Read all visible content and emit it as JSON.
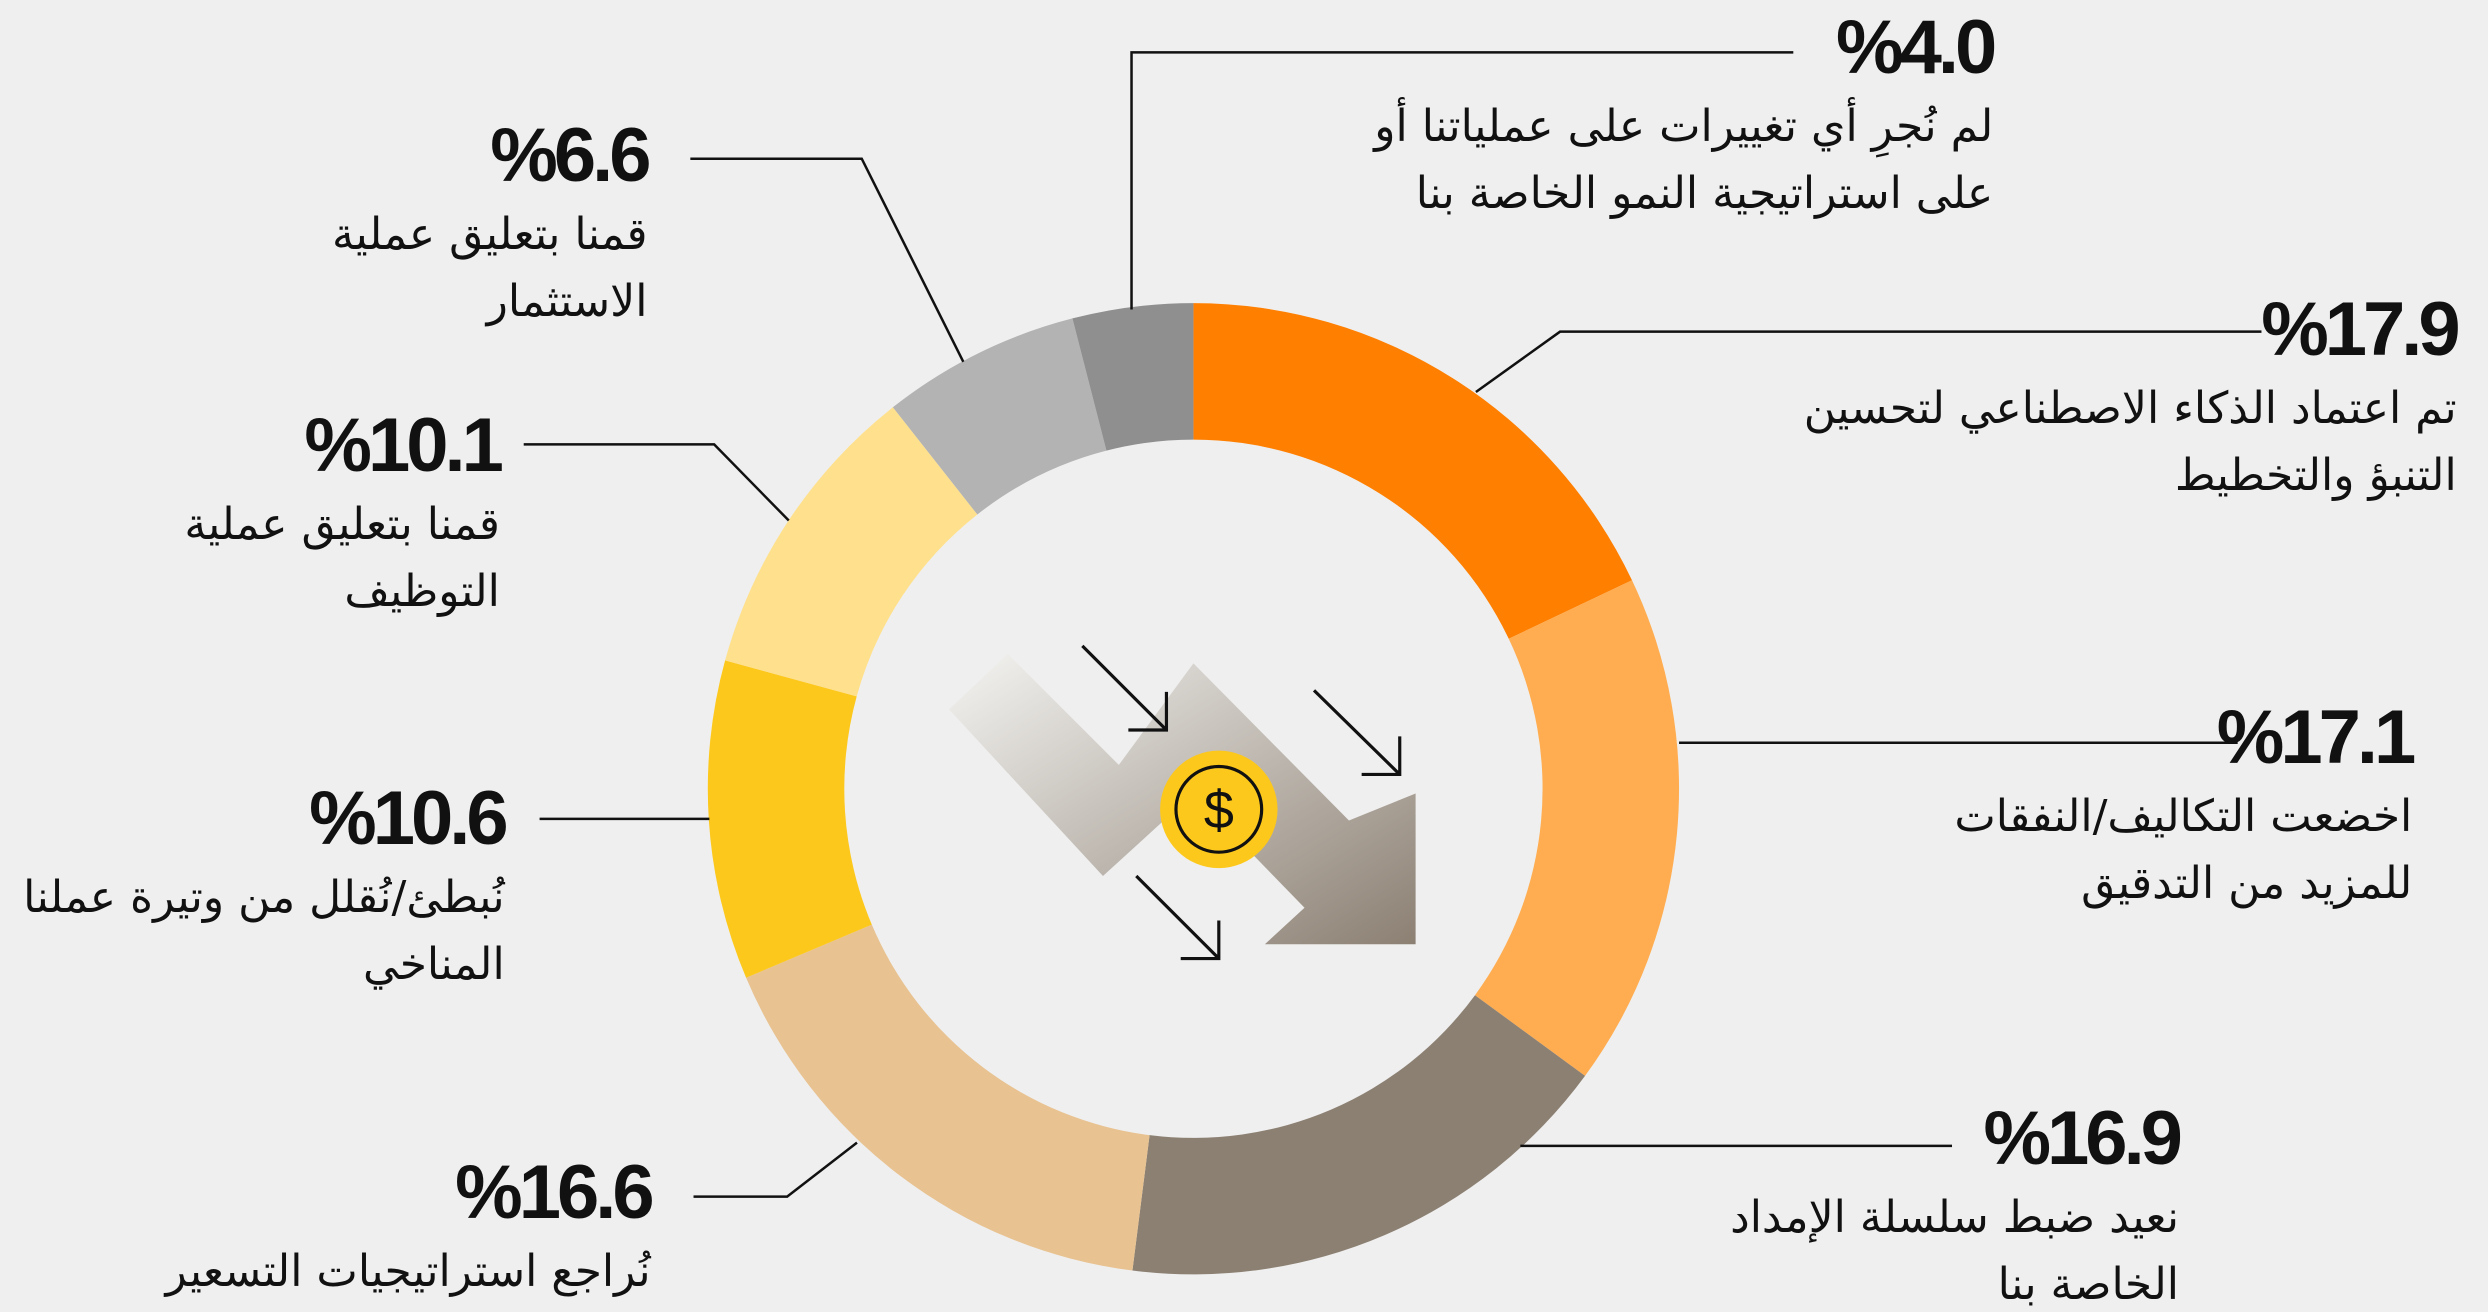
{
  "chart_data": {
    "type": "pie",
    "donut": true,
    "categories": [
      [
        "تم اعتماد الذكاء الاصطناعي لتحسين",
        "التنبؤ والتخطيط"
      ],
      [
        "اخضعت التكاليف/النفقات",
        "للمزيد من التدقيق"
      ],
      [
        "نعيد ضبط سلسلة الإمداد",
        "الخاصة بنا"
      ],
      [
        "نُراجع استراتيجيات التسعير"
      ],
      [
        "نُبطئ/نُقلل من وتيرة عملنا",
        "المناخي"
      ],
      [
        "قمنا بتعليق عملية",
        "التوظيف"
      ],
      [
        "قمنا بتعليق عملية",
        "الاستثمار"
      ],
      [
        "لم نُجرِ أي تغييرات على عملياتنا أو",
        "على استراتيجية النمو الخاصة بنا"
      ]
    ],
    "values": [
      17.9,
      17.1,
      16.9,
      16.6,
      10.6,
      10.1,
      6.6,
      4.0
    ],
    "value_labels": [
      "%17.9",
      "%17.1",
      "%16.9",
      "%16.6",
      "%10.6",
      "%10.1",
      "%6.6",
      "%4.0"
    ],
    "colors": [
      "#ff7f00",
      "#ffad50",
      "#8c8073",
      "#e8c290",
      "#fdc81c",
      "#ffe08c",
      "#b3b3b3",
      "#8f8f8f"
    ]
  }
}
